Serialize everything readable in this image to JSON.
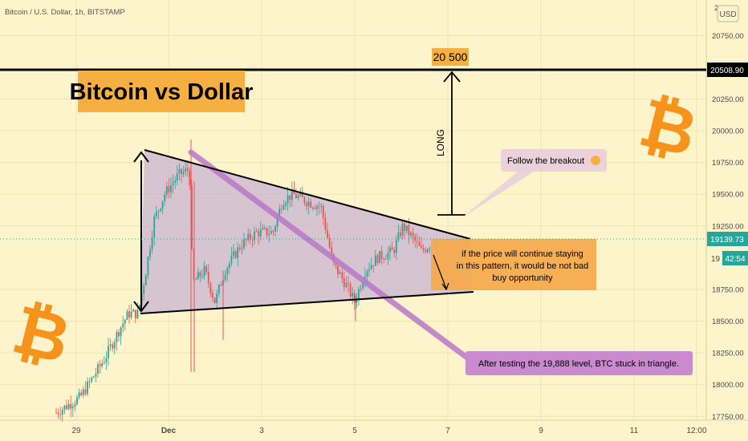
{
  "header": {
    "symbol_title": "Bitcoin / U.S. Dollar, 1h, BITSTAMP",
    "currency_button": "USD"
  },
  "chart_data": {
    "type": "candlestick",
    "title": "Bitcoin vs Dollar",
    "x_ticks": [
      "29",
      "Dec",
      "3",
      "5",
      "7",
      "9",
      "11",
      "12:00"
    ],
    "y_ticks": [
      "20750.00",
      "20250.00",
      "20000.00",
      "19750.00",
      "19500.00",
      "19250.00",
      "18750.00",
      "18500.00",
      "18250.00",
      "18000.00",
      "17750.00"
    ],
    "y_axis_top_partial": "2",
    "ylim": [
      17720,
      21030
    ],
    "resistance_level": 20508.9,
    "current_price": 19139.73,
    "countdown": "42:54",
    "partial_tick": "19",
    "target_label": "20 500",
    "long_label": "LONG",
    "annotations": {
      "breakout": "Follow the breakout",
      "opportunity": [
        "if the price will continue staying",
        "in this pattern, it would be not bad",
        "buy opportunity"
      ],
      "triangle": "After testing the 19,888 level, BTC stuck in triangle."
    },
    "colors": {
      "up": "#26a69a",
      "down": "#ef5350",
      "resistance": "#000000",
      "price_tag": "#26a69a",
      "orange": "#f7931a"
    }
  }
}
